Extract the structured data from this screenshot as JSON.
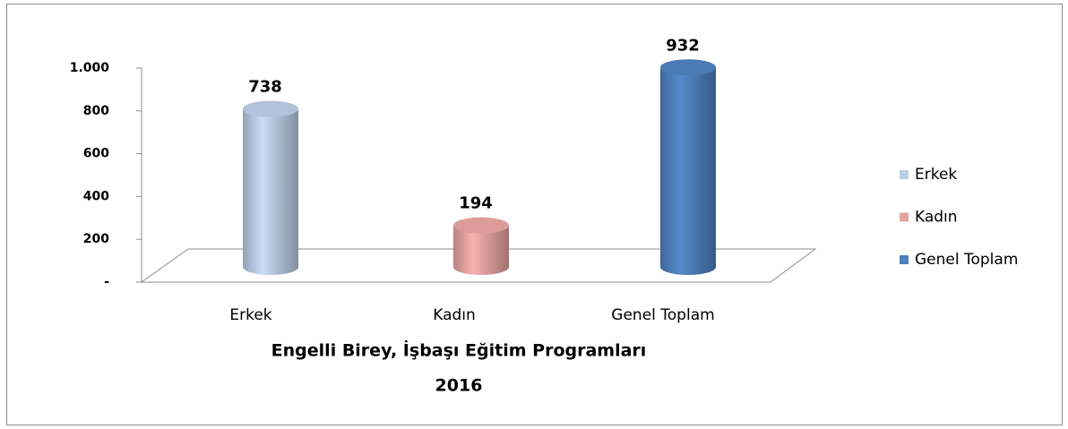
{
  "chart_data": {
    "type": "bar3d",
    "title": "Engelli Birey, İşbaşı Eğitim Programları",
    "subtitle": "2016",
    "categories": [
      "Erkek",
      "Kadın",
      "Genel Toplam"
    ],
    "values": [
      738,
      194,
      932
    ],
    "colors": [
      "#b9cde5",
      "#e6a4a2",
      "#4f81bd"
    ],
    "ylim": [
      0,
      1000
    ],
    "yticks": [
      {
        "value": 0,
        "label": "-"
      },
      200,
      400,
      600,
      800,
      {
        "value": 1000,
        "label": "1.000"
      }
    ],
    "legend": "right"
  }
}
